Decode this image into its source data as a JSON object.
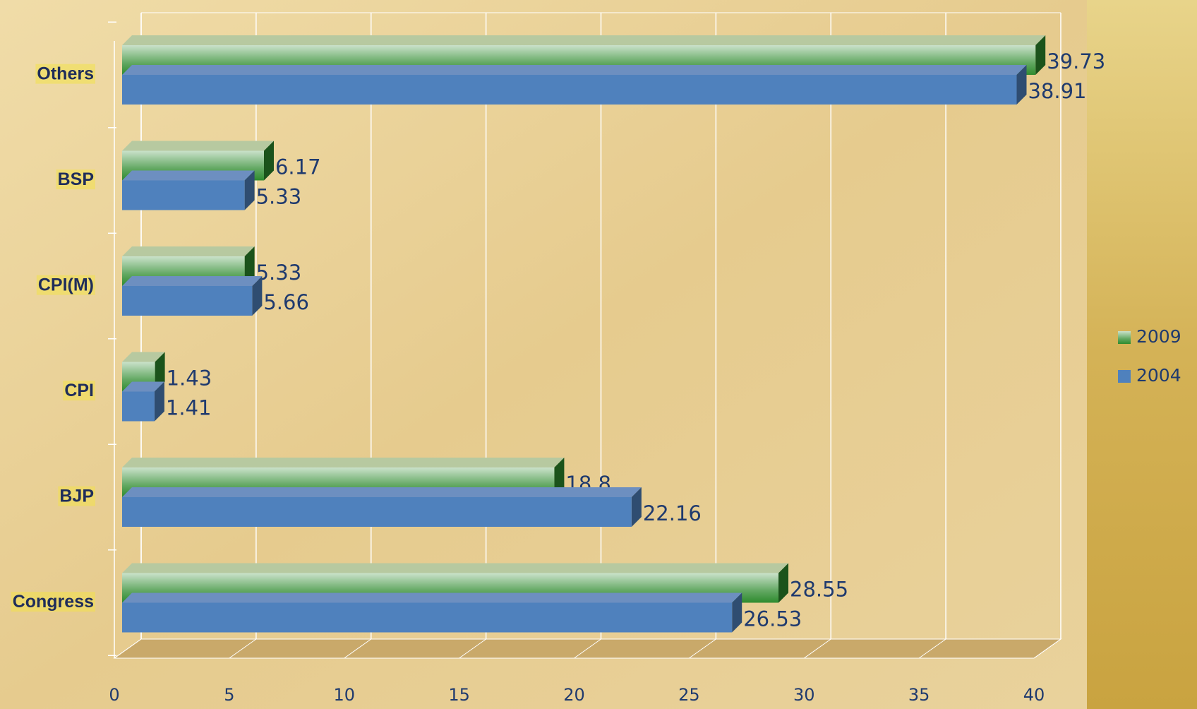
{
  "chart_data": {
    "type": "bar",
    "orientation": "horizontal",
    "categories": [
      "Congress",
      "BJP",
      "CPI",
      "CPI(M)",
      "BSP",
      "Others"
    ],
    "series": [
      {
        "name": "2009",
        "color": "#2e8b2e",
        "values": [
          28.55,
          18.8,
          1.43,
          5.33,
          6.17,
          39.73
        ]
      },
      {
        "name": "2004",
        "color": "#4f81bd",
        "values": [
          26.53,
          22.16,
          1.41,
          5.66,
          5.33,
          38.91
        ]
      }
    ],
    "xlim": [
      0,
      40
    ],
    "xticks": [
      0,
      5,
      10,
      15,
      20,
      25,
      30,
      35,
      40
    ],
    "grid": true,
    "legend": "right"
  }
}
